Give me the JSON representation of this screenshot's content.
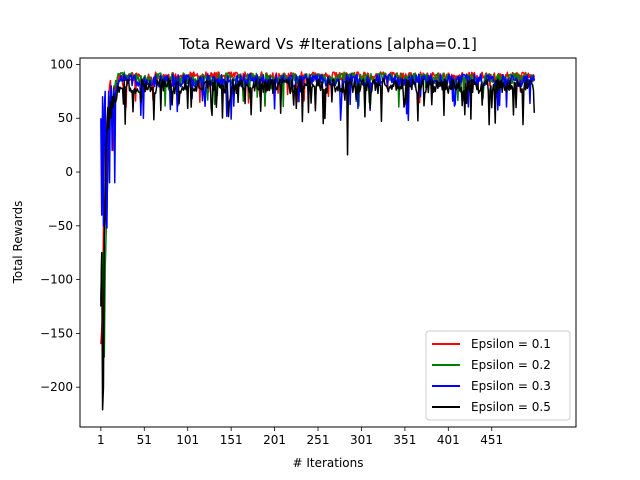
{
  "chart_data": {
    "type": "line",
    "title": "Tota Reward Vs #Iterations [alpha=0.1]",
    "xlabel": "# Iterations",
    "ylabel": "Total Rewards",
    "xlim": [
      -23,
      548
    ],
    "ylim": [
      -237,
      106
    ],
    "x_ticks": [
      1,
      51,
      101,
      151,
      201,
      251,
      301,
      351,
      401,
      451
    ],
    "y_ticks": [
      100,
      50,
      0,
      -50,
      -100,
      -150,
      -200
    ],
    "grid": false,
    "legend_position": "lower-right",
    "n_points": 500,
    "series": [
      {
        "name": "Epsilon = 0.1",
        "color": "#ff0000",
        "keypoints": [
          [
            1,
            -160
          ],
          [
            3,
            -130
          ],
          [
            5,
            30
          ],
          [
            6,
            60
          ],
          [
            8,
            -10
          ],
          [
            10,
            70
          ],
          [
            12,
            85
          ],
          [
            14,
            50
          ],
          [
            16,
            20
          ],
          [
            18,
            80
          ],
          [
            20,
            85
          ],
          [
            25,
            90
          ],
          [
            30,
            60
          ],
          [
            40,
            90
          ],
          [
            100,
            90
          ],
          [
            190,
            62
          ],
          [
            191,
            90
          ],
          [
            500,
            88
          ]
        ],
        "base": 89,
        "noise": 4,
        "dip_rate": 0.05,
        "dip_min": 62,
        "seed": 11
      },
      {
        "name": "Epsilon = 0.2",
        "color": "#008000",
        "keypoints": [
          [
            1,
            -120
          ],
          [
            2,
            -80
          ],
          [
            3,
            -75
          ],
          [
            4,
            -110
          ],
          [
            5,
            -172
          ],
          [
            6,
            -90
          ],
          [
            7,
            -60
          ],
          [
            8,
            -30
          ],
          [
            10,
            30
          ],
          [
            12,
            70
          ],
          [
            14,
            60
          ],
          [
            16,
            80
          ],
          [
            18,
            85
          ],
          [
            20,
            88
          ],
          [
            30,
            90
          ],
          [
            500,
            87
          ]
        ],
        "base": 87,
        "noise": 5,
        "dip_rate": 0.06,
        "dip_min": 60,
        "seed": 22
      },
      {
        "name": "Epsilon = 0.3",
        "color": "#0000ff",
        "keypoints": [
          [
            1,
            50
          ],
          [
            2,
            -40
          ],
          [
            3,
            70
          ],
          [
            4,
            -50
          ],
          [
            5,
            60
          ],
          [
            6,
            75
          ],
          [
            7,
            -45
          ],
          [
            8,
            -52
          ],
          [
            9,
            30
          ],
          [
            10,
            75
          ],
          [
            11,
            -10
          ],
          [
            12,
            70
          ],
          [
            13,
            80
          ],
          [
            14,
            20
          ],
          [
            15,
            60
          ],
          [
            16,
            78
          ],
          [
            17,
            -10
          ],
          [
            18,
            75
          ],
          [
            20,
            82
          ],
          [
            22,
            85
          ],
          [
            30,
            88
          ],
          [
            50,
            50
          ],
          [
            51,
            88
          ],
          [
            500,
            85
          ]
        ],
        "base": 85,
        "noise": 6,
        "dip_rate": 0.08,
        "dip_min": 48,
        "seed": 33
      },
      {
        "name": "Epsilon = 0.5",
        "color": "#000000",
        "keypoints": [
          [
            1,
            -125
          ],
          [
            2,
            -75
          ],
          [
            3,
            -221
          ],
          [
            4,
            -200
          ],
          [
            5,
            -60
          ],
          [
            6,
            -30
          ],
          [
            7,
            20
          ],
          [
            8,
            40
          ],
          [
            9,
            60
          ],
          [
            10,
            40
          ],
          [
            11,
            55
          ],
          [
            12,
            65
          ],
          [
            13,
            50
          ],
          [
            14,
            70
          ],
          [
            15,
            60
          ],
          [
            16,
            72
          ],
          [
            18,
            65
          ],
          [
            20,
            75
          ],
          [
            25,
            78
          ],
          [
            285,
            16
          ],
          [
            500,
            55
          ]
        ],
        "base": 80,
        "noise": 7,
        "dip_rate": 0.12,
        "dip_min": 44,
        "seed": 44
      }
    ]
  }
}
